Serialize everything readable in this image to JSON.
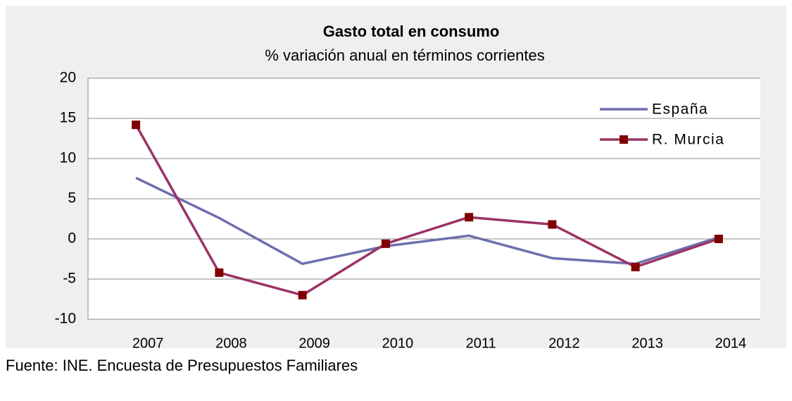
{
  "chart_data": {
    "type": "line",
    "title": "Gasto total en consumo",
    "subtitle": "% variación anual en términos corrientes",
    "categories": [
      "2007",
      "2008",
      "2009",
      "2010",
      "2011",
      "2012",
      "2013",
      "2014"
    ],
    "series": [
      {
        "name": "España",
        "color": "#6e6fae",
        "values": [
          7.6,
          2.6,
          -3.1,
          -0.9,
          0.4,
          -2.4,
          -3.1,
          0.2
        ]
      },
      {
        "name": "R. Murcia",
        "color": "#9b3366",
        "marker_color": "#7f0000",
        "values": [
          14.2,
          -4.2,
          -7.0,
          -0.6,
          2.7,
          1.8,
          -3.5,
          0.0
        ]
      }
    ],
    "ylim": [
      -10,
      20
    ],
    "yticks": [
      -10,
      -5,
      0,
      5,
      10,
      15,
      20
    ],
    "grid": true,
    "legend": "upper right"
  },
  "source": "Fuente: INE. Encuesta de Presupuestos Familiares"
}
